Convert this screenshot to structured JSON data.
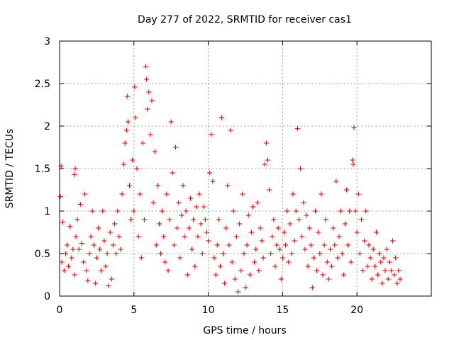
{
  "chart_data": {
    "type": "scatter",
    "title": "Day 277 of 2022, SRMTID for receiver cas1",
    "xlabel": "GPS time / hours",
    "ylabel": "SRMTID / TECUs",
    "xlim": [
      0,
      25
    ],
    "ylim": [
      0,
      3
    ],
    "xticks": [
      0,
      5,
      10,
      15,
      20
    ],
    "xtick_labels": [
      "0",
      "5",
      "10",
      "15",
      "20"
    ],
    "yticks": [
      0,
      0.5,
      1,
      1.5,
      2,
      2.5,
      3
    ],
    "ytick_labels": [
      "0",
      "0.5",
      "1",
      "1.5",
      "2",
      "2.5",
      "3"
    ],
    "grid": true,
    "marker": "+",
    "color": "#ff0000",
    "series": [
      {
        "name": "SRMTID",
        "points": [
          [
            0.05,
            1.17
          ],
          [
            0.1,
            1.53
          ],
          [
            0.15,
            0.4
          ],
          [
            0.2,
            0.87
          ],
          [
            0.3,
            0.3
          ],
          [
            0.4,
            0.5
          ],
          [
            0.5,
            0.6
          ],
          [
            0.6,
            0.35
          ],
          [
            0.7,
            0.82
          ],
          [
            0.8,
            0.45
          ],
          [
            0.9,
            0.55
          ],
          [
            1.0,
            0.25
          ],
          [
            1.0,
            1.43
          ],
          [
            1.05,
            1.5
          ],
          [
            1.1,
            0.7
          ],
          [
            1.2,
            0.9
          ],
          [
            1.3,
            0.55
          ],
          [
            1.4,
            1.08
          ],
          [
            1.5,
            0.62
          ],
          [
            1.6,
            0.4
          ],
          [
            1.7,
            1.2
          ],
          [
            1.8,
            0.3
          ],
          [
            1.9,
            0.18
          ],
          [
            2.0,
            0.5
          ],
          [
            2.1,
            0.7
          ],
          [
            2.2,
            1.0
          ],
          [
            2.3,
            0.6
          ],
          [
            2.4,
            0.15
          ],
          [
            2.5,
            0.45
          ],
          [
            2.6,
            0.8
          ],
          [
            2.7,
            0.55
          ],
          [
            2.8,
            0.3
          ],
          [
            2.9,
            1.0
          ],
          [
            3.0,
            0.65
          ],
          [
            3.1,
            0.35
          ],
          [
            3.2,
            0.5
          ],
          [
            3.3,
            0.12
          ],
          [
            3.4,
            0.75
          ],
          [
            3.5,
            0.2
          ],
          [
            3.6,
            0.6
          ],
          [
            3.7,
            0.85
          ],
          [
            3.8,
            0.5
          ],
          [
            3.9,
            1.0
          ],
          [
            4.0,
            0.7
          ],
          [
            4.1,
            0.55
          ],
          [
            4.2,
            1.2
          ],
          [
            4.3,
            1.55
          ],
          [
            4.4,
            1.8
          ],
          [
            4.5,
            1.95
          ],
          [
            4.55,
            2.35
          ],
          [
            4.6,
            2.05
          ],
          [
            4.7,
            1.3
          ],
          [
            4.8,
            0.9
          ],
          [
            4.9,
            1.6
          ],
          [
            5.0,
            1.0
          ],
          [
            5.05,
            2.46
          ],
          [
            5.1,
            2.1
          ],
          [
            5.2,
            1.5
          ],
          [
            5.3,
            0.7
          ],
          [
            5.4,
            1.2
          ],
          [
            5.5,
            0.45
          ],
          [
            5.6,
            1.8
          ],
          [
            5.7,
            0.9
          ],
          [
            5.8,
            2.7
          ],
          [
            5.85,
            2.55
          ],
          [
            5.9,
            2.2
          ],
          [
            6.0,
            2.4
          ],
          [
            6.1,
            1.9
          ],
          [
            6.2,
            2.3
          ],
          [
            6.3,
            1.1
          ],
          [
            6.4,
            1.7
          ],
          [
            6.5,
            0.6
          ],
          [
            6.6,
            1.3
          ],
          [
            6.7,
            0.85
          ],
          [
            6.8,
            0.5
          ],
          [
            6.9,
            1.0
          ],
          [
            7.0,
            0.7
          ],
          [
            7.1,
            0.4
          ],
          [
            7.2,
            1.2
          ],
          [
            7.3,
            0.3
          ],
          [
            7.4,
            0.9
          ],
          [
            7.5,
            2.05
          ],
          [
            7.6,
            1.45
          ],
          [
            7.7,
            0.6
          ],
          [
            7.8,
            1.75
          ],
          [
            7.9,
            0.8
          ],
          [
            8.0,
            1.1
          ],
          [
            8.1,
            0.45
          ],
          [
            8.2,
            0.95
          ],
          [
            8.3,
            1.3
          ],
          [
            8.4,
            0.7
          ],
          [
            8.5,
            1.0
          ],
          [
            8.6,
            0.25
          ],
          [
            8.7,
            0.8
          ],
          [
            8.8,
            1.15
          ],
          [
            8.9,
            0.55
          ],
          [
            9.0,
            0.9
          ],
          [
            9.1,
            0.35
          ],
          [
            9.2,
            1.05
          ],
          [
            9.3,
            0.7
          ],
          [
            9.4,
            1.2
          ],
          [
            9.5,
            0.85
          ],
          [
            9.6,
            0.5
          ],
          [
            9.7,
            1.05
          ],
          [
            9.8,
            0.9
          ],
          [
            9.9,
            0.75
          ],
          [
            10.0,
            0.65
          ],
          [
            10.1,
            1.45
          ],
          [
            10.2,
            1.9
          ],
          [
            10.3,
            1.35
          ],
          [
            10.4,
            0.45
          ],
          [
            10.5,
            0.25
          ],
          [
            10.6,
            0.6
          ],
          [
            10.7,
            0.9
          ],
          [
            10.8,
            0.35
          ],
          [
            10.9,
            2.1
          ],
          [
            11.0,
            0.5
          ],
          [
            11.1,
            0.15
          ],
          [
            11.2,
            0.8
          ],
          [
            11.3,
            1.3
          ],
          [
            11.4,
            0.6
          ],
          [
            11.5,
            1.95
          ],
          [
            11.6,
            0.4
          ],
          [
            11.7,
            1.0
          ],
          [
            11.8,
            0.2
          ],
          [
            11.9,
            0.7
          ],
          [
            12.0,
            0.05
          ],
          [
            12.1,
            0.85
          ],
          [
            12.2,
            0.3
          ],
          [
            12.3,
            1.2
          ],
          [
            12.4,
            0.5
          ],
          [
            12.5,
            0.1
          ],
          [
            12.6,
            0.6
          ],
          [
            12.7,
            0.95
          ],
          [
            12.8,
            0.25
          ],
          [
            12.9,
            0.75
          ],
          [
            13.0,
            1.05
          ],
          [
            13.1,
            0.4
          ],
          [
            13.2,
            0.55
          ],
          [
            13.3,
            1.1
          ],
          [
            13.4,
            0.3
          ],
          [
            13.5,
            0.8
          ],
          [
            13.6,
            0.65
          ],
          [
            13.7,
            0.45
          ],
          [
            13.8,
            1.55
          ],
          [
            13.9,
            1.8
          ],
          [
            14.0,
            1.6
          ],
          [
            14.1,
            1.25
          ],
          [
            14.2,
            0.5
          ],
          [
            14.3,
            0.7
          ],
          [
            14.4,
            0.9
          ],
          [
            14.5,
            0.35
          ],
          [
            14.6,
            0.6
          ],
          [
            14.7,
            0.8
          ],
          [
            14.8,
            0.55
          ],
          [
            14.9,
            0.2
          ],
          [
            15.0,
            0.45
          ],
          [
            15.1,
            0.75
          ],
          [
            15.2,
            0.6
          ],
          [
            15.3,
            1.0
          ],
          [
            15.4,
            0.4
          ],
          [
            15.5,
            0.85
          ],
          [
            15.6,
            0.5
          ],
          [
            15.7,
            1.2
          ],
          [
            15.8,
            0.65
          ],
          [
            15.9,
            1.0
          ],
          [
            16.0,
            1.97
          ],
          [
            16.1,
            0.9
          ],
          [
            16.2,
            1.5
          ],
          [
            16.3,
            0.7
          ],
          [
            16.4,
            1.1
          ],
          [
            16.5,
            0.55
          ],
          [
            16.6,
            0.95
          ],
          [
            16.7,
            0.35
          ],
          [
            16.8,
            0.8
          ],
          [
            16.9,
            0.6
          ],
          [
            17.0,
            0.1
          ],
          [
            17.1,
            0.45
          ],
          [
            17.2,
            1.0
          ],
          [
            17.3,
            0.3
          ],
          [
            17.4,
            0.75
          ],
          [
            17.5,
            0.5
          ],
          [
            17.6,
            1.2
          ],
          [
            17.7,
            0.25
          ],
          [
            17.8,
            0.6
          ],
          [
            17.9,
            0.9
          ],
          [
            18.0,
            0.4
          ],
          [
            18.1,
            0.2
          ],
          [
            18.2,
            0.55
          ],
          [
            18.3,
            0.35
          ],
          [
            18.4,
            0.8
          ],
          [
            18.5,
            0.6
          ],
          [
            18.6,
            1.35
          ],
          [
            18.7,
            0.45
          ],
          [
            18.8,
            0.7
          ],
          [
            18.9,
            1.0
          ],
          [
            19.0,
            0.5
          ],
          [
            19.1,
            0.25
          ],
          [
            19.2,
            0.85
          ],
          [
            19.3,
            1.25
          ],
          [
            19.4,
            0.6
          ],
          [
            19.5,
            1.0
          ],
          [
            19.6,
            0.4
          ],
          [
            19.7,
            1.6
          ],
          [
            19.75,
            1.55
          ],
          [
            19.8,
            1.98
          ],
          [
            19.9,
            1.0
          ],
          [
            20.0,
            0.75
          ],
          [
            20.1,
            1.2
          ],
          [
            20.2,
            0.5
          ],
          [
            20.3,
            0.9
          ],
          [
            20.4,
            0.3
          ],
          [
            20.5,
            0.65
          ],
          [
            20.6,
            1.0
          ],
          [
            20.7,
            0.35
          ],
          [
            20.8,
            0.6
          ],
          [
            20.9,
            0.45
          ],
          [
            21.0,
            0.2
          ],
          [
            21.1,
            0.55
          ],
          [
            21.2,
            0.35
          ],
          [
            21.3,
            0.75
          ],
          [
            21.4,
            0.25
          ],
          [
            21.5,
            0.5
          ],
          [
            21.6,
            0.4
          ],
          [
            21.7,
            0.15
          ],
          [
            21.8,
            0.45
          ],
          [
            21.9,
            0.3
          ],
          [
            22.0,
            0.55
          ],
          [
            22.1,
            0.2
          ],
          [
            22.2,
            0.4
          ],
          [
            22.3,
            0.3
          ],
          [
            22.4,
            0.65
          ],
          [
            22.5,
            0.25
          ],
          [
            22.6,
            0.45
          ],
          [
            22.7,
            0.15
          ],
          [
            22.8,
            0.3
          ],
          [
            22.9,
            0.2
          ]
        ]
      }
    ]
  }
}
